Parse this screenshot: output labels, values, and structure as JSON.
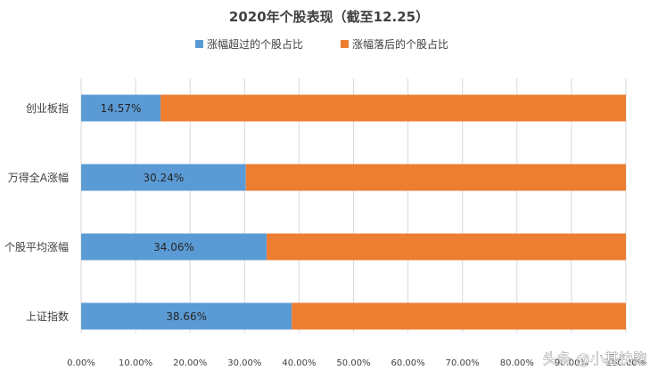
{
  "chart_data": {
    "type": "bar",
    "orientation": "horizontal",
    "stacked": "percent",
    "title": "2020年个股表现（截至12.25）",
    "legend_position": "top",
    "categories": [
      "创业板指",
      "万得全A涨幅",
      "个股平均涨幅",
      "上证指数"
    ],
    "series": [
      {
        "name": "涨幅超过的个股占比",
        "color": "#5B9BD5",
        "values": [
          14.57,
          30.24,
          34.06,
          38.66
        ],
        "data_labels": [
          "14.57%",
          "30.24%",
          "34.06%",
          "38.66%"
        ]
      },
      {
        "name": "涨幅落后的个股占比",
        "color": "#ED7D31",
        "values": [
          85.43,
          69.76,
          65.94,
          61.34
        ]
      }
    ],
    "x_ticks": [
      "0.00%",
      "10.00%",
      "20.00%",
      "30.00%",
      "40.00%",
      "50.00%",
      "60.00%",
      "70.00%",
      "80.00%",
      "90.00%",
      "100.00%"
    ],
    "xlim": [
      0,
      100
    ],
    "grid": true
  },
  "watermark": "头条 @小基快跑"
}
